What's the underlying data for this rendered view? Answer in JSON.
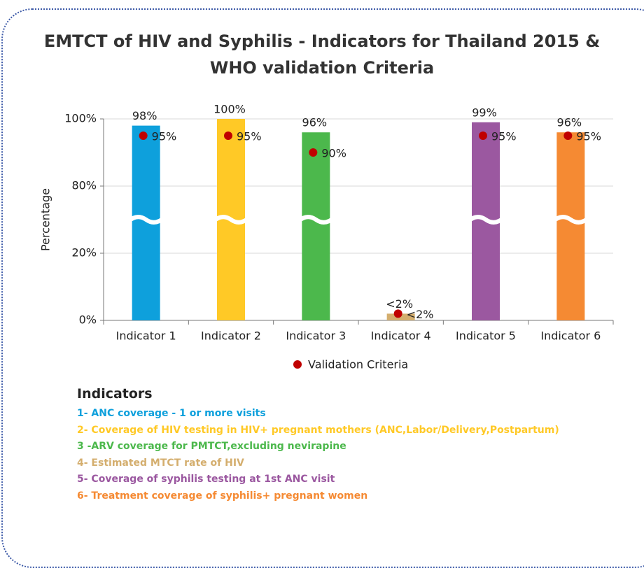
{
  "chart_data": {
    "type": "bar",
    "title": "EMTCT of HIV and Syphilis - Indicators for Thailand 2015 & WHO validation Criteria",
    "ylabel": "Percentage",
    "categories": [
      "Indicator 1",
      "Indicator 2",
      "Indicator 3",
      "Indicator 4",
      "Indicator 5",
      "Indicator 6"
    ],
    "values": [
      98,
      100,
      96,
      2,
      99,
      96
    ],
    "value_labels": [
      "98%",
      "100%",
      "96%",
      "<2%",
      "99%",
      "96%"
    ],
    "colors": [
      "#0ea0dc",
      "#ffc926",
      "#4cb84c",
      "#d4ae6e",
      "#9b58a0",
      "#f58a33"
    ],
    "criteria": {
      "name": "Validation Criteria",
      "color": "#c00000",
      "values": [
        95,
        95,
        90,
        2,
        95,
        95
      ],
      "value_labels": [
        "95%",
        "95%",
        "90%",
        "<2%",
        "95%",
        "95%"
      ]
    },
    "ylim": [
      0,
      100
    ],
    "yticks": [
      {
        "value": 0,
        "label": "0%"
      },
      {
        "value": 20,
        "label": "20%"
      },
      {
        "value": 80,
        "label": "80%"
      },
      {
        "value": 100,
        "label": "100%"
      }
    ],
    "ybreak": [
      20,
      80
    ],
    "grid": true
  },
  "notes": {
    "title": "Indicators",
    "items": [
      "1- ANC coverage - 1 or more visits",
      "2- Coverage of HIV testing in HIV+ pregnant mothers (ANC,Labor/Delivery,Postpartum)",
      "3 -ARV coverage for PMTCT,excluding nevirapine",
      "4- Estimated MTCT rate of HIV",
      "5- Coverage of syphilis testing at 1st ANC visit",
      "6- Treatment coverage of syphilis+ pregnant women"
    ]
  }
}
